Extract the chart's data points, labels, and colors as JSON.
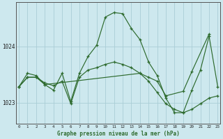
{
  "title": "Graphe pression niveau de la mer (hPa)",
  "bg_color": "#cde8ee",
  "grid_color": "#aacdd6",
  "line_color": "#2d6a2d",
  "x_ticks": [
    0,
    1,
    2,
    3,
    4,
    5,
    6,
    7,
    8,
    9,
    10,
    11,
    12,
    13,
    14,
    15,
    16,
    17,
    18,
    19,
    20,
    21,
    22,
    23
  ],
  "y_ticks": [
    1023,
    1024
  ],
  "ylim": [
    1022.62,
    1024.78
  ],
  "xlim": [
    -0.3,
    23.3
  ],
  "series": [
    {
      "x": [
        0,
        1,
        2,
        3,
        4,
        5,
        6,
        7,
        8,
        9,
        10,
        11,
        12,
        13,
        14,
        15,
        16,
        17,
        18,
        19,
        20,
        21,
        22,
        23
      ],
      "y": [
        1023.28,
        1023.45,
        1023.45,
        1023.35,
        1023.3,
        1023.38,
        1022.98,
        1023.45,
        1023.58,
        1023.62,
        1023.68,
        1023.72,
        1023.68,
        1023.62,
        1023.52,
        1023.38,
        1023.18,
        1022.98,
        1022.88,
        1022.82,
        1022.88,
        1022.98,
        1023.08,
        1023.12
      ]
    },
    {
      "x": [
        0,
        1,
        2,
        3,
        4,
        5,
        6,
        7,
        8,
        9,
        10,
        11,
        12,
        13,
        14,
        15,
        16,
        17,
        18,
        19,
        20,
        21,
        22,
        23
      ],
      "y": [
        1023.28,
        1023.52,
        1023.48,
        1023.32,
        1023.22,
        1023.52,
        1023.02,
        1023.52,
        1023.82,
        1024.02,
        1024.52,
        1024.6,
        1024.58,
        1024.32,
        1024.12,
        1023.72,
        1023.48,
        1023.08,
        1022.82,
        1022.82,
        1023.22,
        1023.58,
        1024.18,
        1023.28
      ]
    },
    {
      "x": [
        0,
        1,
        2,
        3,
        14,
        15,
        16,
        17,
        19,
        20,
        22
      ],
      "y": [
        1023.28,
        1023.45,
        1023.45,
        1023.32,
        1023.52,
        1023.45,
        1023.38,
        1023.12,
        1023.2,
        1023.55,
        1024.22
      ]
    }
  ]
}
